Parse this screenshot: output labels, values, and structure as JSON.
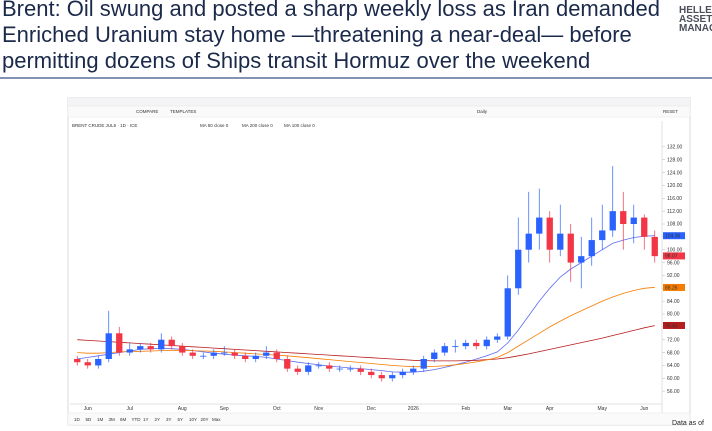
{
  "header": {
    "title_lines": [
      "Brent: Oil swung and posted a sharp weekly loss as Iran demanded",
      "Enriched Uranium stay home —threatening a near-deal— before",
      "permitting dozens of Ships transit Hormuz over the weekend"
    ],
    "logo_lines": [
      "HELLENI",
      "ASSET",
      "MANAGE"
    ]
  },
  "toolbar": {
    "compare": "COMPARE",
    "templates": "TEMPLATES",
    "interval": "Daily",
    "reset": "RESET"
  },
  "range_buttons": [
    "1D",
    "5D",
    "1M",
    "3M",
    "6M",
    "YTD",
    "1Y",
    "2Y",
    "3Y",
    "5Y",
    "10Y",
    "20Y",
    "Max"
  ],
  "footer": "Data as of",
  "chart_data": {
    "type": "candlestick",
    "legend_title": "BRENT CRUDE JUL6 · 1D · ICE",
    "categories": [
      null,
      "Jun",
      null,
      null,
      null,
      "Jul",
      null,
      null,
      null,
      null,
      "Aug",
      null,
      null,
      null,
      "Sep",
      null,
      null,
      null,
      null,
      "Oct",
      null,
      null,
      null,
      "Nov",
      null,
      null,
      null,
      null,
      "Dec",
      null,
      null,
      null,
      "2026",
      null,
      null,
      null,
      null,
      "Feb",
      null,
      null,
      null,
      "Mar",
      null,
      null,
      null,
      "Apr",
      null,
      null,
      null,
      null,
      "May",
      null,
      null,
      null,
      "Jun",
      null
    ],
    "open": [
      66,
      65,
      64,
      66,
      74,
      68,
      69,
      70,
      69,
      72,
      70,
      68,
      67,
      67,
      68,
      68,
      67,
      66,
      67,
      68,
      66,
      63,
      62,
      64,
      64,
      63,
      63,
      63,
      62,
      61,
      60,
      61,
      62,
      63,
      66,
      68,
      70,
      70,
      71,
      70,
      72,
      73,
      88,
      100,
      105,
      110,
      100,
      105,
      96,
      98,
      103,
      106,
      112,
      108,
      110,
      104
    ],
    "high": [
      67,
      66,
      67,
      81,
      76,
      71,
      71,
      71,
      74,
      73,
      71,
      69,
      68,
      69,
      70,
      69,
      68,
      68,
      70,
      69,
      67,
      64,
      65,
      65,
      65,
      64,
      64,
      64,
      63,
      62,
      62,
      63,
      64,
      67,
      69,
      71,
      72,
      72,
      72,
      73,
      74,
      92,
      110,
      118,
      119,
      112,
      114,
      108,
      104,
      110,
      114,
      126,
      118,
      114,
      111,
      106
    ],
    "low": [
      64,
      63,
      63,
      65,
      67,
      67,
      68,
      68,
      68,
      69,
      67,
      66,
      66,
      66,
      67,
      66,
      65,
      65,
      66,
      65,
      62,
      61,
      61,
      63,
      62,
      62,
      62,
      61,
      60,
      59,
      59,
      60,
      61,
      62,
      65,
      67,
      68,
      69,
      69,
      69,
      71,
      72,
      86,
      96,
      100,
      96,
      98,
      90,
      88,
      95,
      100,
      104,
      100,
      102,
      100,
      96
    ],
    "close": [
      65,
      64,
      66,
      74,
      68,
      69,
      70,
      69,
      72,
      70,
      68,
      67,
      67,
      68,
      68,
      67,
      66,
      67,
      68,
      66,
      63,
      62,
      64,
      64,
      63,
      63,
      63,
      62,
      61,
      60,
      61,
      62,
      63,
      66,
      68,
      70,
      70,
      71,
      70,
      72,
      73,
      88,
      100,
      105,
      110,
      100,
      105,
      96,
      98,
      103,
      106,
      112,
      108,
      110,
      104,
      98
    ],
    "up_color": "#2962ff",
    "down_color": "#f23645",
    "series": [
      {
        "name": "MA 50 close 0",
        "color": "#5c6bf0",
        "values": [
          66,
          66.5,
          67,
          67.5,
          68,
          68.5,
          69,
          69.2,
          69.3,
          69.2,
          69,
          68.6,
          68.2,
          67.8,
          67.5,
          67.2,
          67,
          66.8,
          66.5,
          66,
          65.5,
          65,
          64.6,
          64.2,
          63.8,
          63.5,
          63.2,
          63,
          62.7,
          62.4,
          62,
          61.9,
          61.9,
          62.2,
          62.7,
          63.4,
          64.2,
          65,
          66,
          67,
          68.2,
          71,
          75,
          79.5,
          84,
          88,
          91.5,
          94,
          96,
          98,
          100,
          102,
          103,
          103.8,
          104.2,
          104.4
        ]
      },
      {
        "name": "MA 200 close 0",
        "color": "#b71c1c",
        "values": [
          72,
          71.8,
          71.6,
          71.4,
          71.2,
          71,
          70.8,
          70.6,
          70.4,
          70.2,
          70,
          69.8,
          69.6,
          69.4,
          69.2,
          69,
          68.8,
          68.6,
          68.4,
          68.2,
          68,
          67.8,
          67.6,
          67.4,
          67.2,
          67,
          66.8,
          66.6,
          66.4,
          66.2,
          66,
          65.8,
          65.6,
          65.5,
          65.4,
          65.4,
          65.4,
          65.5,
          65.6,
          65.8,
          66,
          66.4,
          67,
          67.6,
          68.3,
          69,
          69.7,
          70.4,
          71.1,
          71.8,
          72.5,
          73.3,
          74.1,
          74.9,
          75.7,
          76.4
        ]
      },
      {
        "name": "MA 100 close 0",
        "color": "#f57c00",
        "values": [
          68,
          67.8,
          67.8,
          68,
          68.2,
          68.3,
          68.4,
          68.5,
          68.6,
          68.7,
          68.7,
          68.6,
          68.5,
          68.4,
          68.2,
          68,
          67.8,
          67.6,
          67.4,
          67.2,
          67,
          66.7,
          66.4,
          66.1,
          65.8,
          65.5,
          65.2,
          64.9,
          64.6,
          64.3,
          64,
          63.8,
          63.6,
          63.6,
          63.7,
          63.9,
          64.2,
          64.6,
          65.1,
          65.7,
          66.5,
          68,
          70,
          72,
          74,
          76,
          77.8,
          79.5,
          81,
          82.5,
          84,
          85.3,
          86.4,
          87.3,
          88,
          88.3
        ]
      }
    ],
    "price_tags": [
      {
        "value": 104.36,
        "color": "#2962ff"
      },
      {
        "value": 98.07,
        "color": "#f23645"
      },
      {
        "value": 88.26,
        "color": "#f57c00"
      },
      {
        "value": 76.43,
        "color": "#b71c1c"
      }
    ],
    "ylim": [
      52,
      136
    ],
    "yticks": [
      {
        "value": 56,
        "label": "56.00"
      },
      {
        "value": 60,
        "label": "60.00"
      },
      {
        "value": 64,
        "label": "64.00"
      },
      {
        "value": 68,
        "label": "68.00"
      },
      {
        "value": 72,
        "label": "72.00"
      },
      {
        "value": 76,
        "label": "76.00"
      },
      {
        "value": 80,
        "label": "80.00"
      },
      {
        "value": 84,
        "label": "84.00"
      },
      {
        "value": 88,
        "label": "88.00"
      },
      {
        "value": 92,
        "label": "92.00"
      },
      {
        "value": 96,
        "label": "96.00"
      },
      {
        "value": 100,
        "label": "100.00"
      },
      {
        "value": 104,
        "label": "104.00"
      },
      {
        "value": 108,
        "label": "108.00"
      },
      {
        "value": 112,
        "label": "112.00"
      },
      {
        "value": 116,
        "label": "116.00"
      },
      {
        "value": 120,
        "label": "120.00"
      },
      {
        "value": 124,
        "label": "124.00"
      },
      {
        "value": 128,
        "label": "128.00"
      },
      {
        "value": 132,
        "label": "132.00"
      }
    ],
    "grid": false
  }
}
